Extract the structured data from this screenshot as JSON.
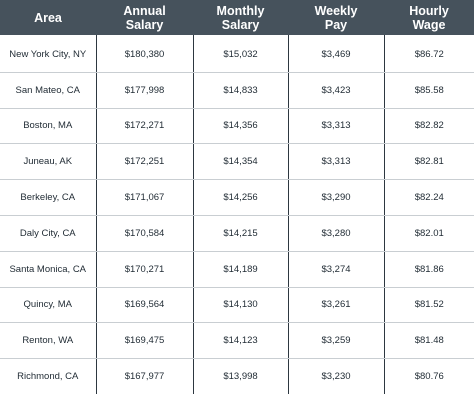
{
  "table": {
    "headers": [
      [
        "Area"
      ],
      [
        "Annual",
        "Salary"
      ],
      [
        "Monthly",
        "Salary"
      ],
      [
        "Weekly",
        "Pay"
      ],
      [
        "Hourly",
        "Wage"
      ]
    ],
    "rows": [
      [
        "New York City, NY",
        "$180,380",
        "$15,032",
        "$3,469",
        "$86.72"
      ],
      [
        "San Mateo, CA",
        "$177,998",
        "$14,833",
        "$3,423",
        "$85.58"
      ],
      [
        "Boston, MA",
        "$172,271",
        "$14,356",
        "$3,313",
        "$82.82"
      ],
      [
        "Juneau, AK",
        "$172,251",
        "$14,354",
        "$3,313",
        "$82.81"
      ],
      [
        "Berkeley, CA",
        "$171,067",
        "$14,256",
        "$3,290",
        "$82.24"
      ],
      [
        "Daly City, CA",
        "$170,584",
        "$14,215",
        "$3,280",
        "$82.01"
      ],
      [
        "Santa Monica, CA",
        "$170,271",
        "$14,189",
        "$3,274",
        "$81.86"
      ],
      [
        "Quincy, MA",
        "$169,564",
        "$14,130",
        "$3,261",
        "$81.52"
      ],
      [
        "Renton, WA",
        "$169,475",
        "$14,123",
        "$3,259",
        "$81.48"
      ],
      [
        "Richmond, CA",
        "$167,977",
        "$13,998",
        "$3,230",
        "$80.76"
      ]
    ]
  },
  "colors": {
    "header_background": "#46525c",
    "header_text": "#ffffff",
    "body_text": "#1f2a33",
    "column_divider": "#2d3740",
    "row_divider": "#c9ced2"
  }
}
